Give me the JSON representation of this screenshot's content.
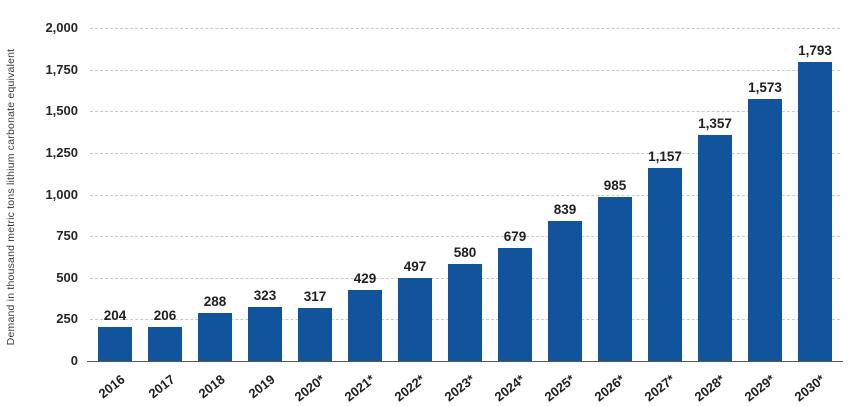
{
  "chart_data": {
    "type": "bar",
    "title": "",
    "xlabel": "",
    "ylabel": "Demand in thousand metric tons lithium carbonate equivalent",
    "categories": [
      "2016",
      "2017",
      "2018",
      "2019",
      "2020*",
      "2021*",
      "2022*",
      "2023*",
      "2024*",
      "2025*",
      "2026*",
      "2027*",
      "2028*",
      "2029*",
      "2030*"
    ],
    "values": [
      204,
      206,
      288,
      323,
      317,
      429,
      497,
      580,
      679,
      839,
      985,
      1157,
      1357,
      1573,
      1793
    ],
    "value_labels": [
      "204",
      "206",
      "288",
      "323",
      "317",
      "429",
      "497",
      "580",
      "679",
      "839",
      "985",
      "1,157",
      "1,357",
      "1,573",
      "1,793"
    ],
    "ylim": [
      0,
      2000
    ],
    "ytick_labels": [
      "0",
      "250",
      "500",
      "750",
      "1,000",
      "1,250",
      "1,500",
      "1,750",
      "2,000"
    ],
    "grid": "horizontal-dashed",
    "legend": "none",
    "colors": {
      "bar": "#11549c",
      "value_label": "#1f1f1f",
      "tick_label": "#262626",
      "gridline": "#c9c9c9",
      "axis_line": "#595959",
      "background": "#ffffff"
    }
  }
}
